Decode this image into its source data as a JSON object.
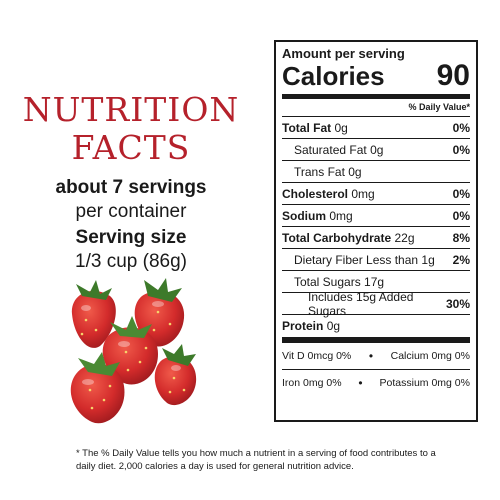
{
  "left": {
    "title_line1": "NUTRITION",
    "title_line2": "FACTS",
    "servings_bold": "about 7 servings",
    "servings_regular": "per container",
    "serving_size_label": "Serving size",
    "serving_size_value": "1/3 cup (86g)",
    "image": "strawberries"
  },
  "panel": {
    "amount_per_serving": "Amount per serving",
    "calories_label": "Calories",
    "calories_value": "90",
    "daily_value_header": "% Daily Value*",
    "rows": [
      {
        "name": "Total Fat",
        "amount": "0g",
        "pct": "0%"
      },
      {
        "name": "Saturated Fat",
        "amount": "0g",
        "pct": "0%"
      },
      {
        "name": "Trans Fat",
        "amount": "0g",
        "pct": ""
      },
      {
        "name": "Cholesterol",
        "amount": "0mg",
        "pct": "0%"
      },
      {
        "name": "Sodium",
        "amount": "0mg",
        "pct": "0%"
      },
      {
        "name": "Total Carbohydrate",
        "amount": "22g",
        "pct": "8%"
      },
      {
        "name": "Dietary Fiber",
        "amount": "Less than 1g",
        "pct": "2%"
      },
      {
        "name": "Total Sugars",
        "amount": "17g",
        "pct": ""
      },
      {
        "name": "Includes 15g Added Sugars",
        "amount": "",
        "pct": "30%"
      },
      {
        "name": "Protein",
        "amount": "0g",
        "pct": ""
      }
    ],
    "vitamins": [
      {
        "left": "Vit D 0mcg 0%",
        "sep": "•",
        "right": "Calcium 0mg 0%"
      },
      {
        "left": "Iron 0mg 0%",
        "sep": "•",
        "right": "Potassium 0mg 0%"
      }
    ]
  },
  "footnote": "* The % Daily Value tells you how much a nutrient in a serving of food contributes to a daily diet. 2,000 calories a day is used for general nutrition advice.",
  "colors": {
    "title": "#b5212b",
    "text": "#1a1a1a",
    "berry": "#d32b2b"
  }
}
